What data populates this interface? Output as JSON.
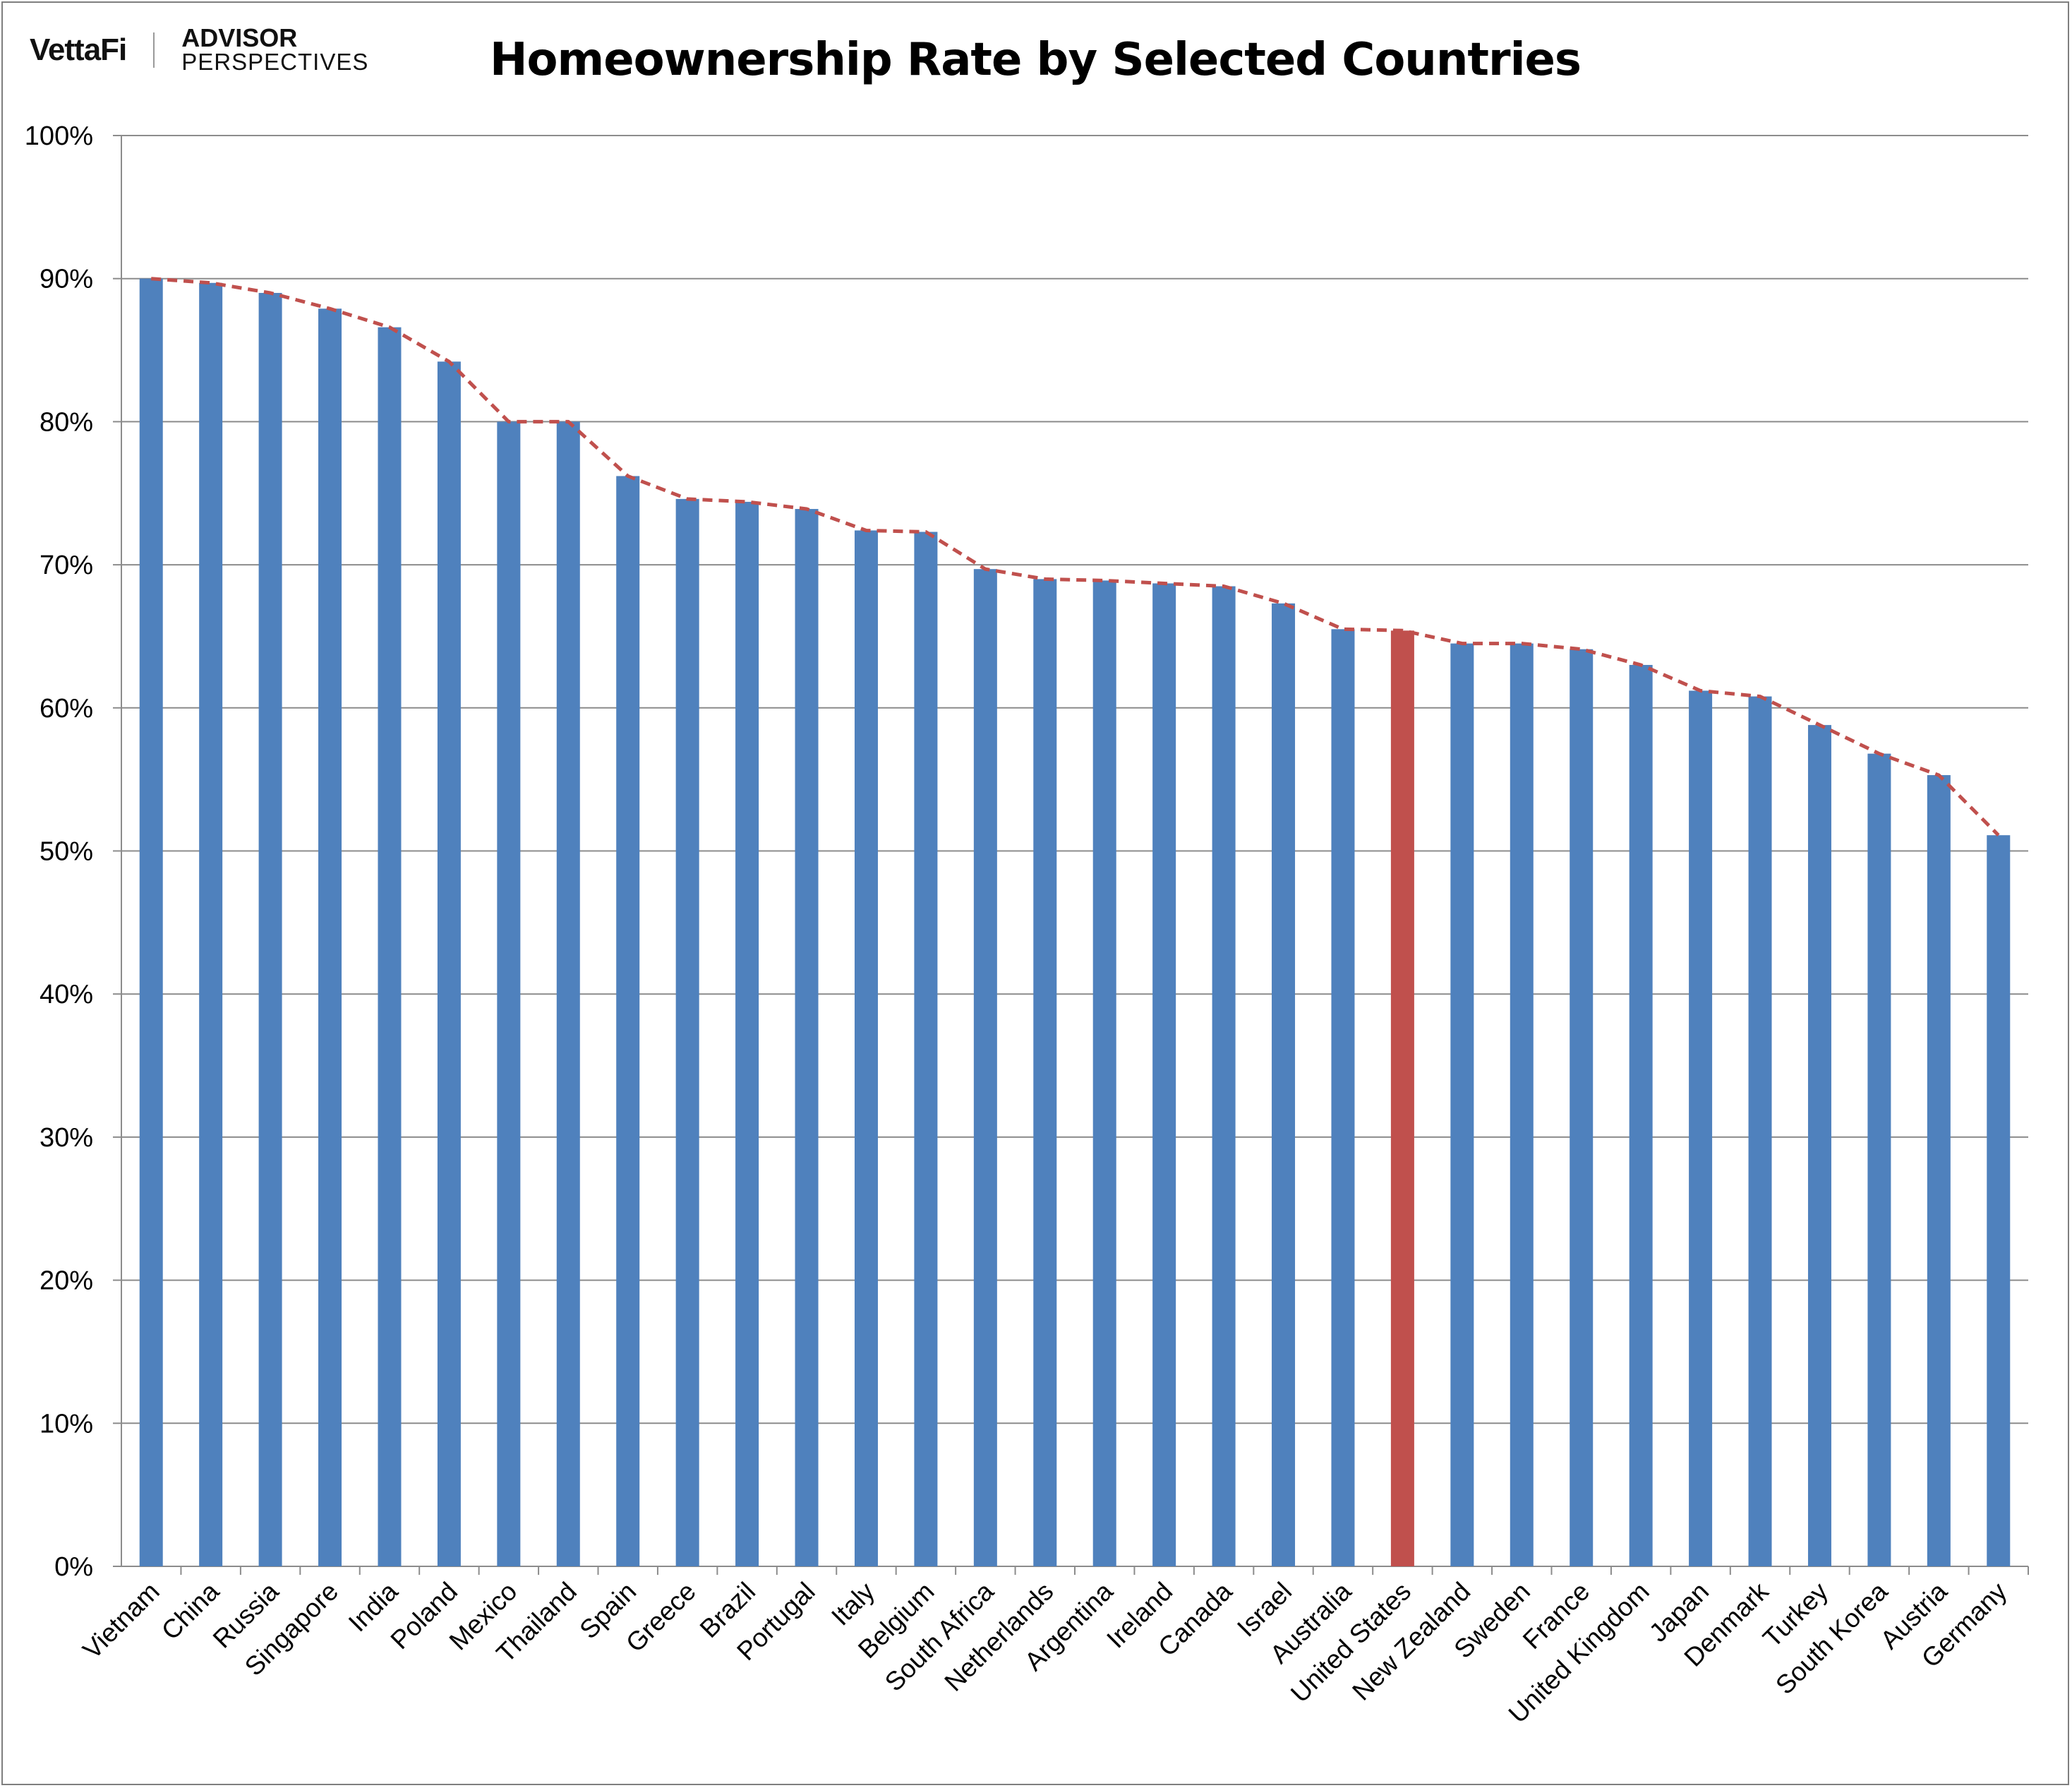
{
  "brand": {
    "vettafi": "VettaFi",
    "advisor": "ADVISOR",
    "perspectives": "PERSPECTIVES"
  },
  "colors": {
    "bar": "#4f81bd",
    "highlight": "#c0504d",
    "trend": "#c0504d",
    "grid": "#8c8c8c"
  },
  "chart_data": {
    "type": "bar",
    "title": "Homeownership Rate by Selected Countries",
    "xlabel": "",
    "ylabel": "",
    "ylim": [
      0,
      100
    ],
    "yticks": [
      "0%",
      "10%",
      "20%",
      "30%",
      "40%",
      "50%",
      "60%",
      "70%",
      "80%",
      "90%",
      "100%"
    ],
    "grid": true,
    "highlight": "United States",
    "trendline": "dashed line connecting bar tops",
    "categories": [
      "Vietnam",
      "China",
      "Russia",
      "Singapore",
      "India",
      "Poland",
      "Mexico",
      "Thailand",
      "Spain",
      "Greece",
      "Brazil",
      "Portugal",
      "Italy",
      "Belgium",
      "South Africa",
      "Netherlands",
      "Argentina",
      "Ireland",
      "Canada",
      "Israel",
      "Australia",
      "United States",
      "New Zealand",
      "Sweden",
      "France",
      "United Kingdom",
      "Japan",
      "Denmark",
      "Turkey",
      "South Korea",
      "Austria",
      "Germany"
    ],
    "values": [
      90.0,
      89.7,
      89.0,
      87.9,
      86.6,
      84.2,
      80.0,
      80.0,
      76.2,
      74.6,
      74.4,
      73.9,
      72.4,
      72.3,
      69.7,
      69.0,
      68.9,
      68.7,
      68.5,
      67.3,
      65.5,
      65.4,
      64.5,
      64.5,
      64.1,
      63.0,
      61.2,
      60.8,
      58.8,
      56.8,
      55.3,
      51.1
    ]
  }
}
